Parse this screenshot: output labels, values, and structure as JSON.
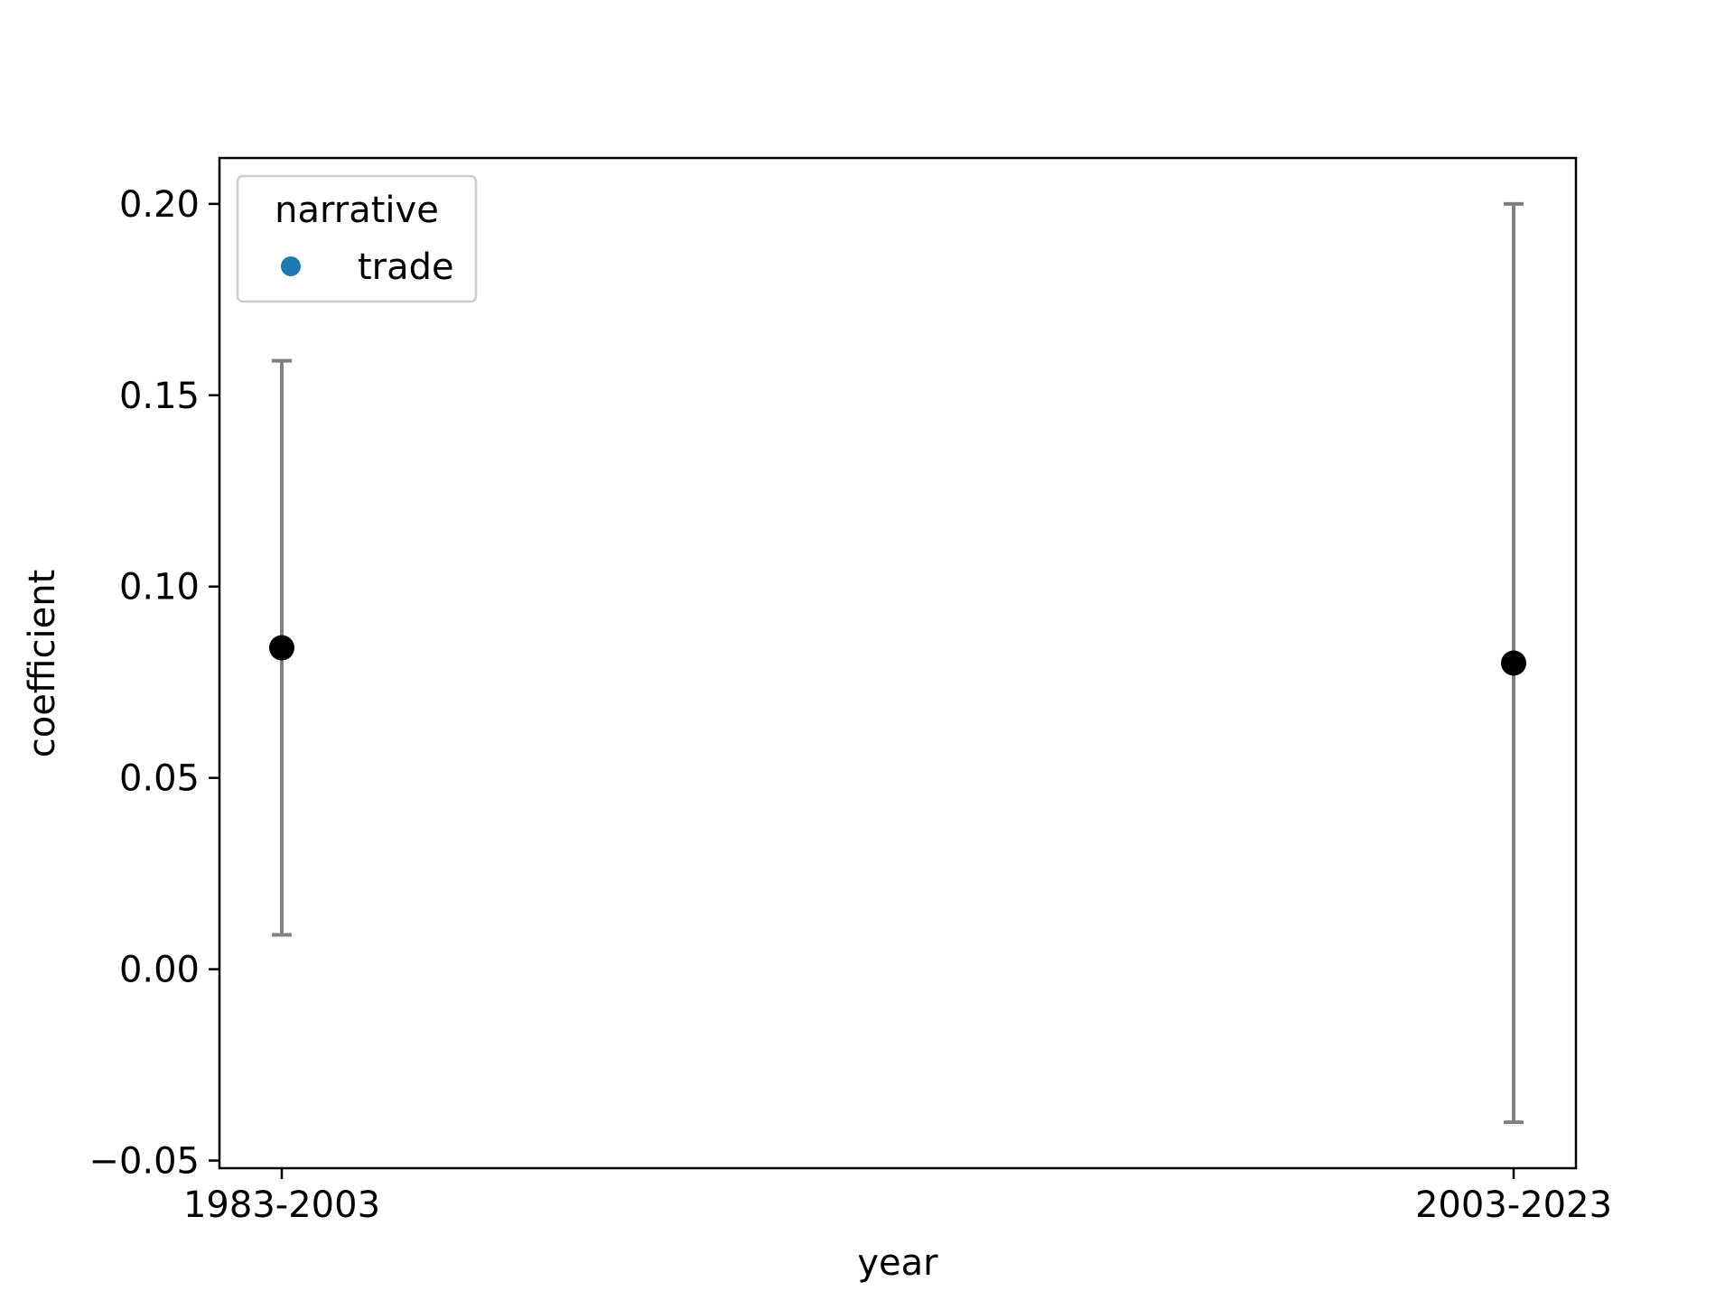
{
  "chart_data": {
    "type": "scatter",
    "title": "",
    "xlabel": "year",
    "ylabel": "coefficient",
    "categories": [
      "1983-2003",
      "2003-2023"
    ],
    "series": [
      {
        "name": "trade",
        "values": [
          0.084,
          0.08
        ],
        "ci_lower": [
          0.009,
          -0.04
        ],
        "ci_upper": [
          0.159,
          0.2
        ]
      }
    ],
    "ylim": [
      -0.052,
      0.212
    ],
    "yticks": [
      -0.05,
      0.0,
      0.05,
      0.1,
      0.15,
      0.2
    ],
    "ytick_labels": [
      "−0.05",
      "0.00",
      "0.05",
      "0.10",
      "0.15",
      "0.20"
    ],
    "grid": false,
    "legend": {
      "title": "narrative",
      "entries": [
        "trade"
      ],
      "placement": "top-left"
    },
    "colors": {
      "point": "#000000",
      "errorbar": "#808080",
      "legend_marker": "#1f77b4",
      "frame": "#000000",
      "legend_border": "#cccccc"
    }
  }
}
